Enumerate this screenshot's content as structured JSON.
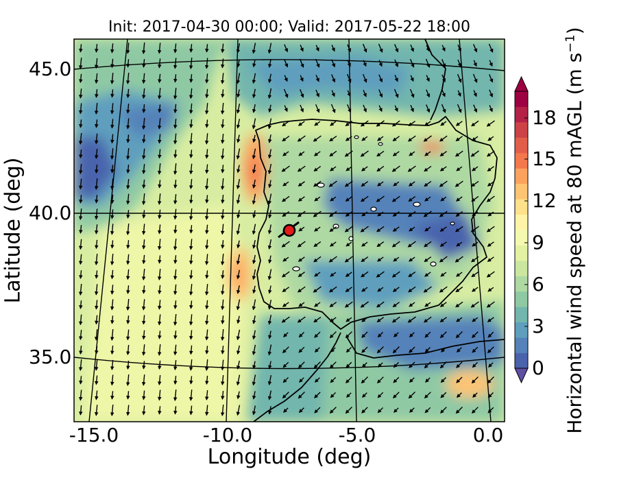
{
  "title": "Init: 2017-04-30 00:00; Valid: 2017-05-22 18:00",
  "xaxis_label": "Longitude (deg)",
  "yaxis_label": "Latitude (deg)",
  "x_ticks": [
    "-15.0",
    "-10.0",
    "-5.0",
    "0.0"
  ],
  "y_ticks": [
    "45.0",
    "40.0",
    "35.0"
  ],
  "colorbar": {
    "label_main": "Horizontal wind speed at 80 mAGL (m s",
    "label_exp": "−1",
    "label_close": ")",
    "ticks": [
      "18",
      "15",
      "12",
      "9",
      "6",
      "3",
      "0"
    ],
    "extend": "both",
    "colormap": "Spectral_r",
    "colors": [
      "#4a63ad",
      "#5582b9",
      "#5f9fbd",
      "#72b6ad",
      "#8fc9a4",
      "#aed9a2",
      "#cbe79f",
      "#e3f1a3",
      "#f4f9b0",
      "#fff3a8",
      "#fee18a",
      "#fdc474",
      "#fba35e",
      "#f4784c",
      "#e35e4a",
      "#cd4246",
      "#b42247",
      "#9e0142"
    ]
  },
  "marker": {
    "label": "site",
    "lon": -7.8,
    "lat": 39.4,
    "color": "#e31b1b"
  },
  "map": {
    "region": "Iberian Peninsula and surrounding Atlantic",
    "lon_range": [
      -16,
      0.2
    ],
    "lat_range": [
      32.5,
      46.5
    ],
    "field": "wind speed shaded with wind vectors"
  }
}
